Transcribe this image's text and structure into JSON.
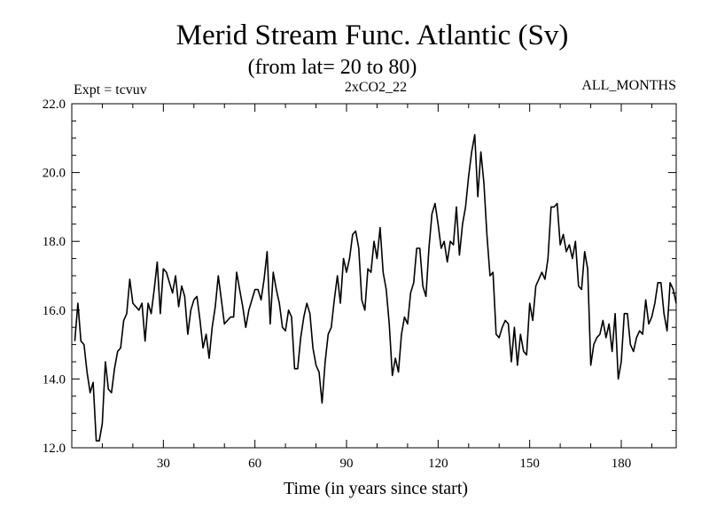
{
  "chart_data": {
    "type": "line",
    "title": "Merid Stream Func. Atlantic (Sv)",
    "subtitle": "(from lat= 20 to 80)",
    "left_label": "Expt = tcvuv",
    "center_label": "2xCO2_22",
    "right_label": "ALL_MONTHS",
    "xlabel": "Time (in years since start)",
    "ylabel": "",
    "xlim": [
      0,
      198
    ],
    "ylim": [
      12.0,
      22.0
    ],
    "x_ticks": [
      30,
      60,
      90,
      120,
      150,
      180
    ],
    "x_tick_labels": [
      "30",
      "60",
      "90",
      "120",
      "150",
      "180"
    ],
    "y_ticks": [
      12.0,
      14.0,
      16.0,
      18.0,
      20.0,
      22.0
    ],
    "y_tick_labels": [
      "12.0",
      "14.0",
      "16.0",
      "18.0",
      "20.0",
      "22.0"
    ],
    "grid": false,
    "x": [
      1,
      2,
      3,
      4,
      5,
      6,
      7,
      8,
      9,
      10,
      11,
      12,
      13,
      14,
      15,
      16,
      17,
      18,
      19,
      20,
      21,
      22,
      23,
      24,
      25,
      26,
      27,
      28,
      29,
      30,
      31,
      32,
      33,
      34,
      35,
      36,
      37,
      38,
      39,
      40,
      41,
      42,
      43,
      44,
      45,
      46,
      47,
      48,
      49,
      50,
      51,
      52,
      53,
      54,
      55,
      56,
      57,
      58,
      59,
      60,
      61,
      62,
      63,
      64,
      65,
      66,
      67,
      68,
      69,
      70,
      71,
      72,
      73,
      74,
      75,
      76,
      77,
      78,
      79,
      80,
      81,
      82,
      83,
      84,
      85,
      86,
      87,
      88,
      89,
      90,
      91,
      92,
      93,
      94,
      95,
      96,
      97,
      98,
      99,
      100,
      101,
      102,
      103,
      104,
      105,
      106,
      107,
      108,
      109,
      110,
      111,
      112,
      113,
      114,
      115,
      116,
      117,
      118,
      119,
      120,
      121,
      122,
      123,
      124,
      125,
      126,
      127,
      128,
      129,
      130,
      131,
      132,
      133,
      134,
      135,
      136,
      137,
      138,
      139,
      140,
      141,
      142,
      143,
      144,
      145,
      146,
      147,
      148,
      149,
      150,
      151,
      152,
      153,
      154,
      155,
      156,
      157,
      158,
      159,
      160,
      161,
      162,
      163,
      164,
      165,
      166,
      167,
      168,
      169,
      170,
      171,
      172,
      173,
      174,
      175,
      176,
      177,
      178,
      179,
      180,
      181,
      182,
      183,
      184,
      185,
      186,
      187,
      188,
      189,
      190,
      191,
      192,
      193,
      194,
      195,
      196,
      197,
      198
    ],
    "series": [
      {
        "values": [
          15.1,
          16.2,
          15.1,
          15.0,
          14.2,
          13.6,
          13.9,
          12.2,
          12.2,
          12.7,
          14.5,
          13.7,
          13.6,
          14.3,
          14.8,
          14.9,
          15.7,
          15.9,
          16.9,
          16.2,
          16.1,
          16.0,
          16.2,
          15.1,
          16.2,
          15.9,
          16.6,
          17.4,
          15.9,
          17.2,
          17.1,
          16.8,
          16.5,
          17.0,
          16.1,
          16.7,
          16.4,
          15.3,
          16.0,
          16.3,
          16.4,
          15.7,
          14.9,
          15.3,
          14.6,
          15.5,
          16.1,
          17.0,
          16.3,
          15.6,
          15.7,
          15.8,
          15.8,
          17.1,
          16.6,
          16.1,
          15.5,
          16.0,
          16.3,
          16.6,
          16.6,
          16.3,
          16.9,
          17.7,
          15.6,
          17.1,
          16.6,
          16.2,
          15.5,
          15.4,
          16.0,
          15.8,
          14.3,
          14.3,
          15.2,
          15.8,
          16.2,
          15.9,
          14.9,
          14.4,
          14.2,
          13.3,
          14.5,
          15.3,
          15.5,
          16.3,
          17.0,
          16.2,
          17.5,
          17.1,
          17.5,
          18.2,
          18.3,
          17.8,
          16.3,
          16.0,
          17.2,
          17.1,
          18.0,
          17.5,
          18.4,
          17.1,
          16.6,
          15.6,
          14.1,
          14.6,
          14.2,
          15.3,
          15.8,
          15.6,
          16.5,
          16.8,
          17.8,
          17.8,
          16.7,
          16.4,
          17.8,
          18.8,
          19.1,
          18.5,
          17.8,
          18.0,
          17.4,
          18.0,
          17.9,
          19.0,
          17.6,
          18.5,
          19.0,
          19.9,
          20.6,
          21.1,
          19.3,
          20.6,
          19.7,
          18.2,
          17.0,
          17.1,
          15.3,
          15.2,
          15.5,
          15.7,
          15.6,
          14.5,
          15.5,
          14.4,
          15.3,
          14.8,
          14.7,
          16.2,
          15.7,
          16.7,
          16.9,
          17.1,
          16.9,
          17.5,
          19.0,
          19.0,
          19.1,
          17.9,
          18.2,
          17.7,
          17.9,
          17.5,
          18.0,
          16.7,
          16.6,
          17.7,
          17.2,
          14.4,
          15.0,
          15.2,
          15.3,
          15.7,
          15.2,
          15.6,
          14.8,
          15.9,
          14.0,
          14.5,
          15.9,
          15.9,
          15.0,
          14.8,
          15.2,
          15.4,
          15.3,
          16.3,
          15.6,
          15.8,
          16.2,
          16.8,
          16.8,
          15.9,
          15.4,
          16.8,
          16.6,
          16.2
        ]
      }
    ]
  }
}
